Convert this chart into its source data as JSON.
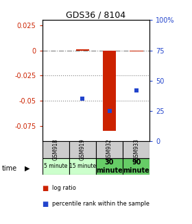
{
  "title": "GDS36 / 8104",
  "samples": [
    "GSM918",
    "GSM919",
    "GSM932",
    "GSM933"
  ],
  "time_labels": [
    "5 minute",
    "15 minute",
    "30\nminute",
    "90\nminute"
  ],
  "time_bg_light": "#ccffcc",
  "time_bg_dark": "#66cc66",
  "time_bg_colors": [
    "#ccffcc",
    "#ccffcc",
    "#66cc66",
    "#66cc66"
  ],
  "sample_bg_color": "#cccccc",
  "log_ratios": [
    0.0,
    0.001,
    -0.08,
    -0.001
  ],
  "percentile_ranks_pct": [
    null,
    35,
    25,
    42
  ],
  "ylim_left": [
    -0.09,
    0.03
  ],
  "ylim_right": [
    0,
    100
  ],
  "left_ticks": [
    0.025,
    0,
    -0.025,
    -0.05,
    -0.075
  ],
  "right_ticks": [
    100,
    75,
    50,
    25,
    0
  ],
  "bar_color": "#cc2200",
  "dot_color": "#2244cc",
  "left_tick_color": "#cc2200",
  "right_tick_color": "#2244cc",
  "bar_width": 0.5,
  "legend_labels": [
    "log ratio",
    "percentile rank within the sample"
  ],
  "fig_width": 2.8,
  "fig_height": 3.27,
  "dpi": 100
}
